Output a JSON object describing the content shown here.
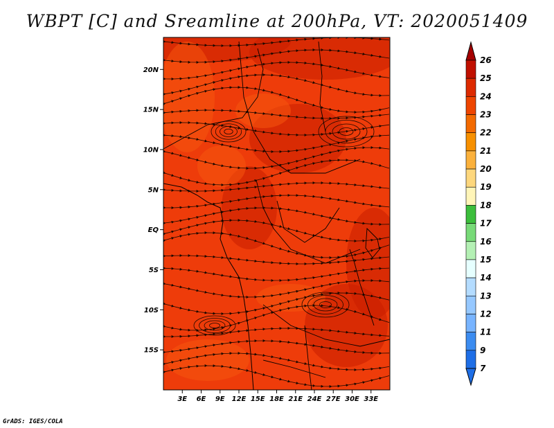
{
  "title": "WBPT [C] and Sreamline at 200hPa, VT: 2020051409",
  "footer": "GrADS: IGES/COLA",
  "map": {
    "lon_range": [
      0,
      36
    ],
    "lat_range": [
      -20,
      24
    ],
    "field_colors": {
      "base": "#ee3c0a",
      "dark": "#c81e00",
      "light": "#f6560f"
    },
    "streamline_color": "#1a0800",
    "coastline_color": "#000000"
  },
  "y_ticks": [
    {
      "lat": 20,
      "label": "20N"
    },
    {
      "lat": 15,
      "label": "15N"
    },
    {
      "lat": 10,
      "label": "10N"
    },
    {
      "lat": 5,
      "label": "5N"
    },
    {
      "lat": 0,
      "label": "EQ"
    },
    {
      "lat": -5,
      "label": "5S"
    },
    {
      "lat": -10,
      "label": "10S"
    },
    {
      "lat": -15,
      "label": "15S"
    }
  ],
  "x_ticks": [
    {
      "lon": 3,
      "label": "3E"
    },
    {
      "lon": 6,
      "label": "6E"
    },
    {
      "lon": 9,
      "label": "9E"
    },
    {
      "lon": 12,
      "label": "12E"
    },
    {
      "lon": 15,
      "label": "15E"
    },
    {
      "lon": 18,
      "label": "18E"
    },
    {
      "lon": 21,
      "label": "21E"
    },
    {
      "lon": 24,
      "label": "24E"
    },
    {
      "lon": 27,
      "label": "27E"
    },
    {
      "lon": 30,
      "label": "30E"
    },
    {
      "lon": 33,
      "label": "33E"
    }
  ],
  "colorbar": {
    "levels": [
      {
        "label": "26",
        "color": "#a50000"
      },
      {
        "label": "25",
        "color": "#c01000"
      },
      {
        "label": "24",
        "color": "#dd2a00"
      },
      {
        "label": "23",
        "color": "#ee4500"
      },
      {
        "label": "22",
        "color": "#f36a00"
      },
      {
        "label": "21",
        "color": "#f79000"
      },
      {
        "label": "20",
        "color": "#fbb13c"
      },
      {
        "label": "19",
        "color": "#fdd77d"
      },
      {
        "label": "18",
        "color": "#fff5b8"
      },
      {
        "label": "17",
        "color": "#3cbe3c"
      },
      {
        "label": "16",
        "color": "#78da78"
      },
      {
        "label": "15",
        "color": "#b4f0b4"
      },
      {
        "label": "14",
        "color": "#e6ffff"
      },
      {
        "label": "13",
        "color": "#b4dcff"
      },
      {
        "label": "12",
        "color": "#96c8ff"
      },
      {
        "label": "11",
        "color": "#78b4ff"
      },
      {
        "label": "9",
        "color": "#3c8cf0"
      },
      {
        "label": "7",
        "color": "#1e6ee6"
      }
    ],
    "bottom_color": "#1e6ee6",
    "top_color": "#a50000"
  }
}
